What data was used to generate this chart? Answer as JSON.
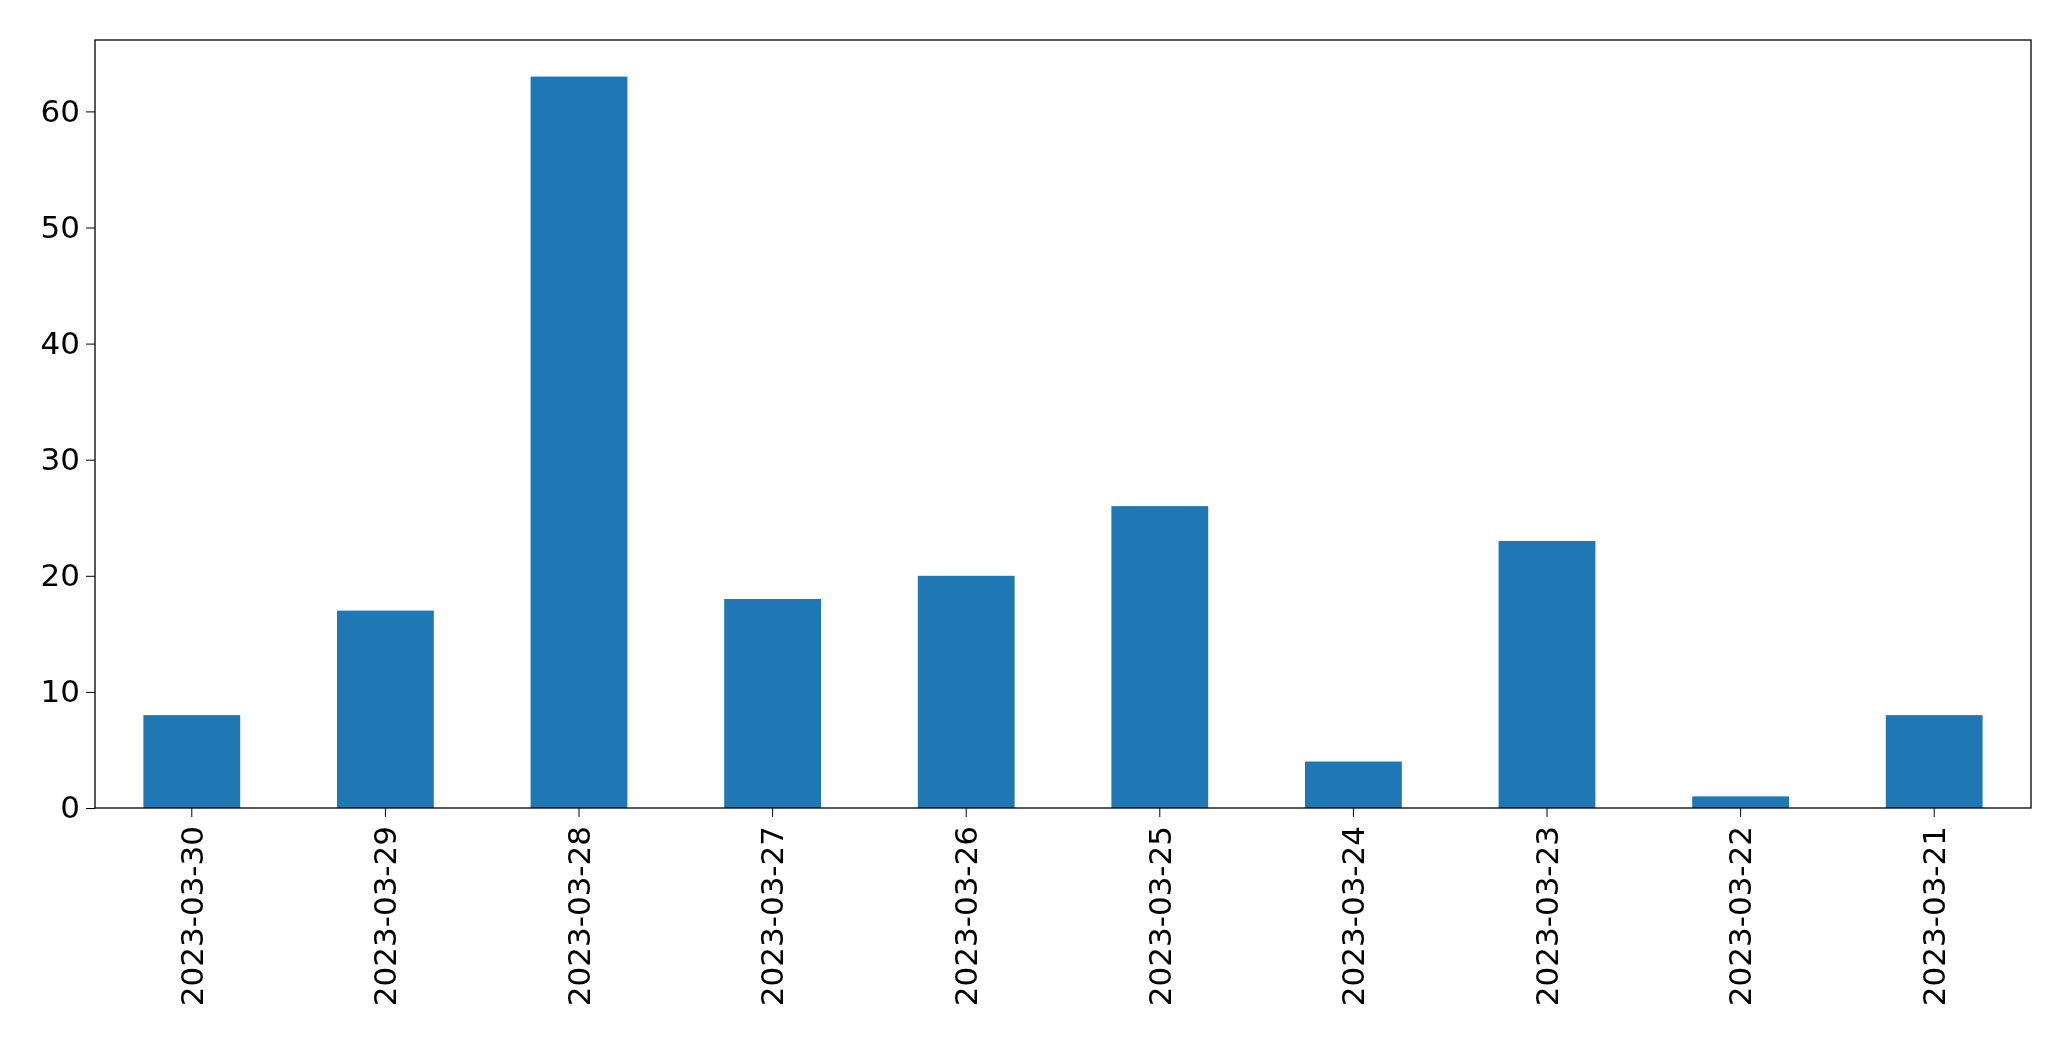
{
  "chart_data": {
    "type": "bar",
    "categories": [
      "2023-03-30",
      "2023-03-29",
      "2023-03-28",
      "2023-03-27",
      "2023-03-26",
      "2023-03-25",
      "2023-03-24",
      "2023-03-23",
      "2023-03-22",
      "2023-03-21"
    ],
    "values": [
      8,
      17,
      63,
      18,
      20,
      26,
      4,
      23,
      1,
      8
    ],
    "color": "#1f77b4",
    "ylim": [
      0,
      66.15
    ],
    "yticks": [
      0,
      10,
      20,
      30,
      40,
      50,
      60
    ]
  }
}
